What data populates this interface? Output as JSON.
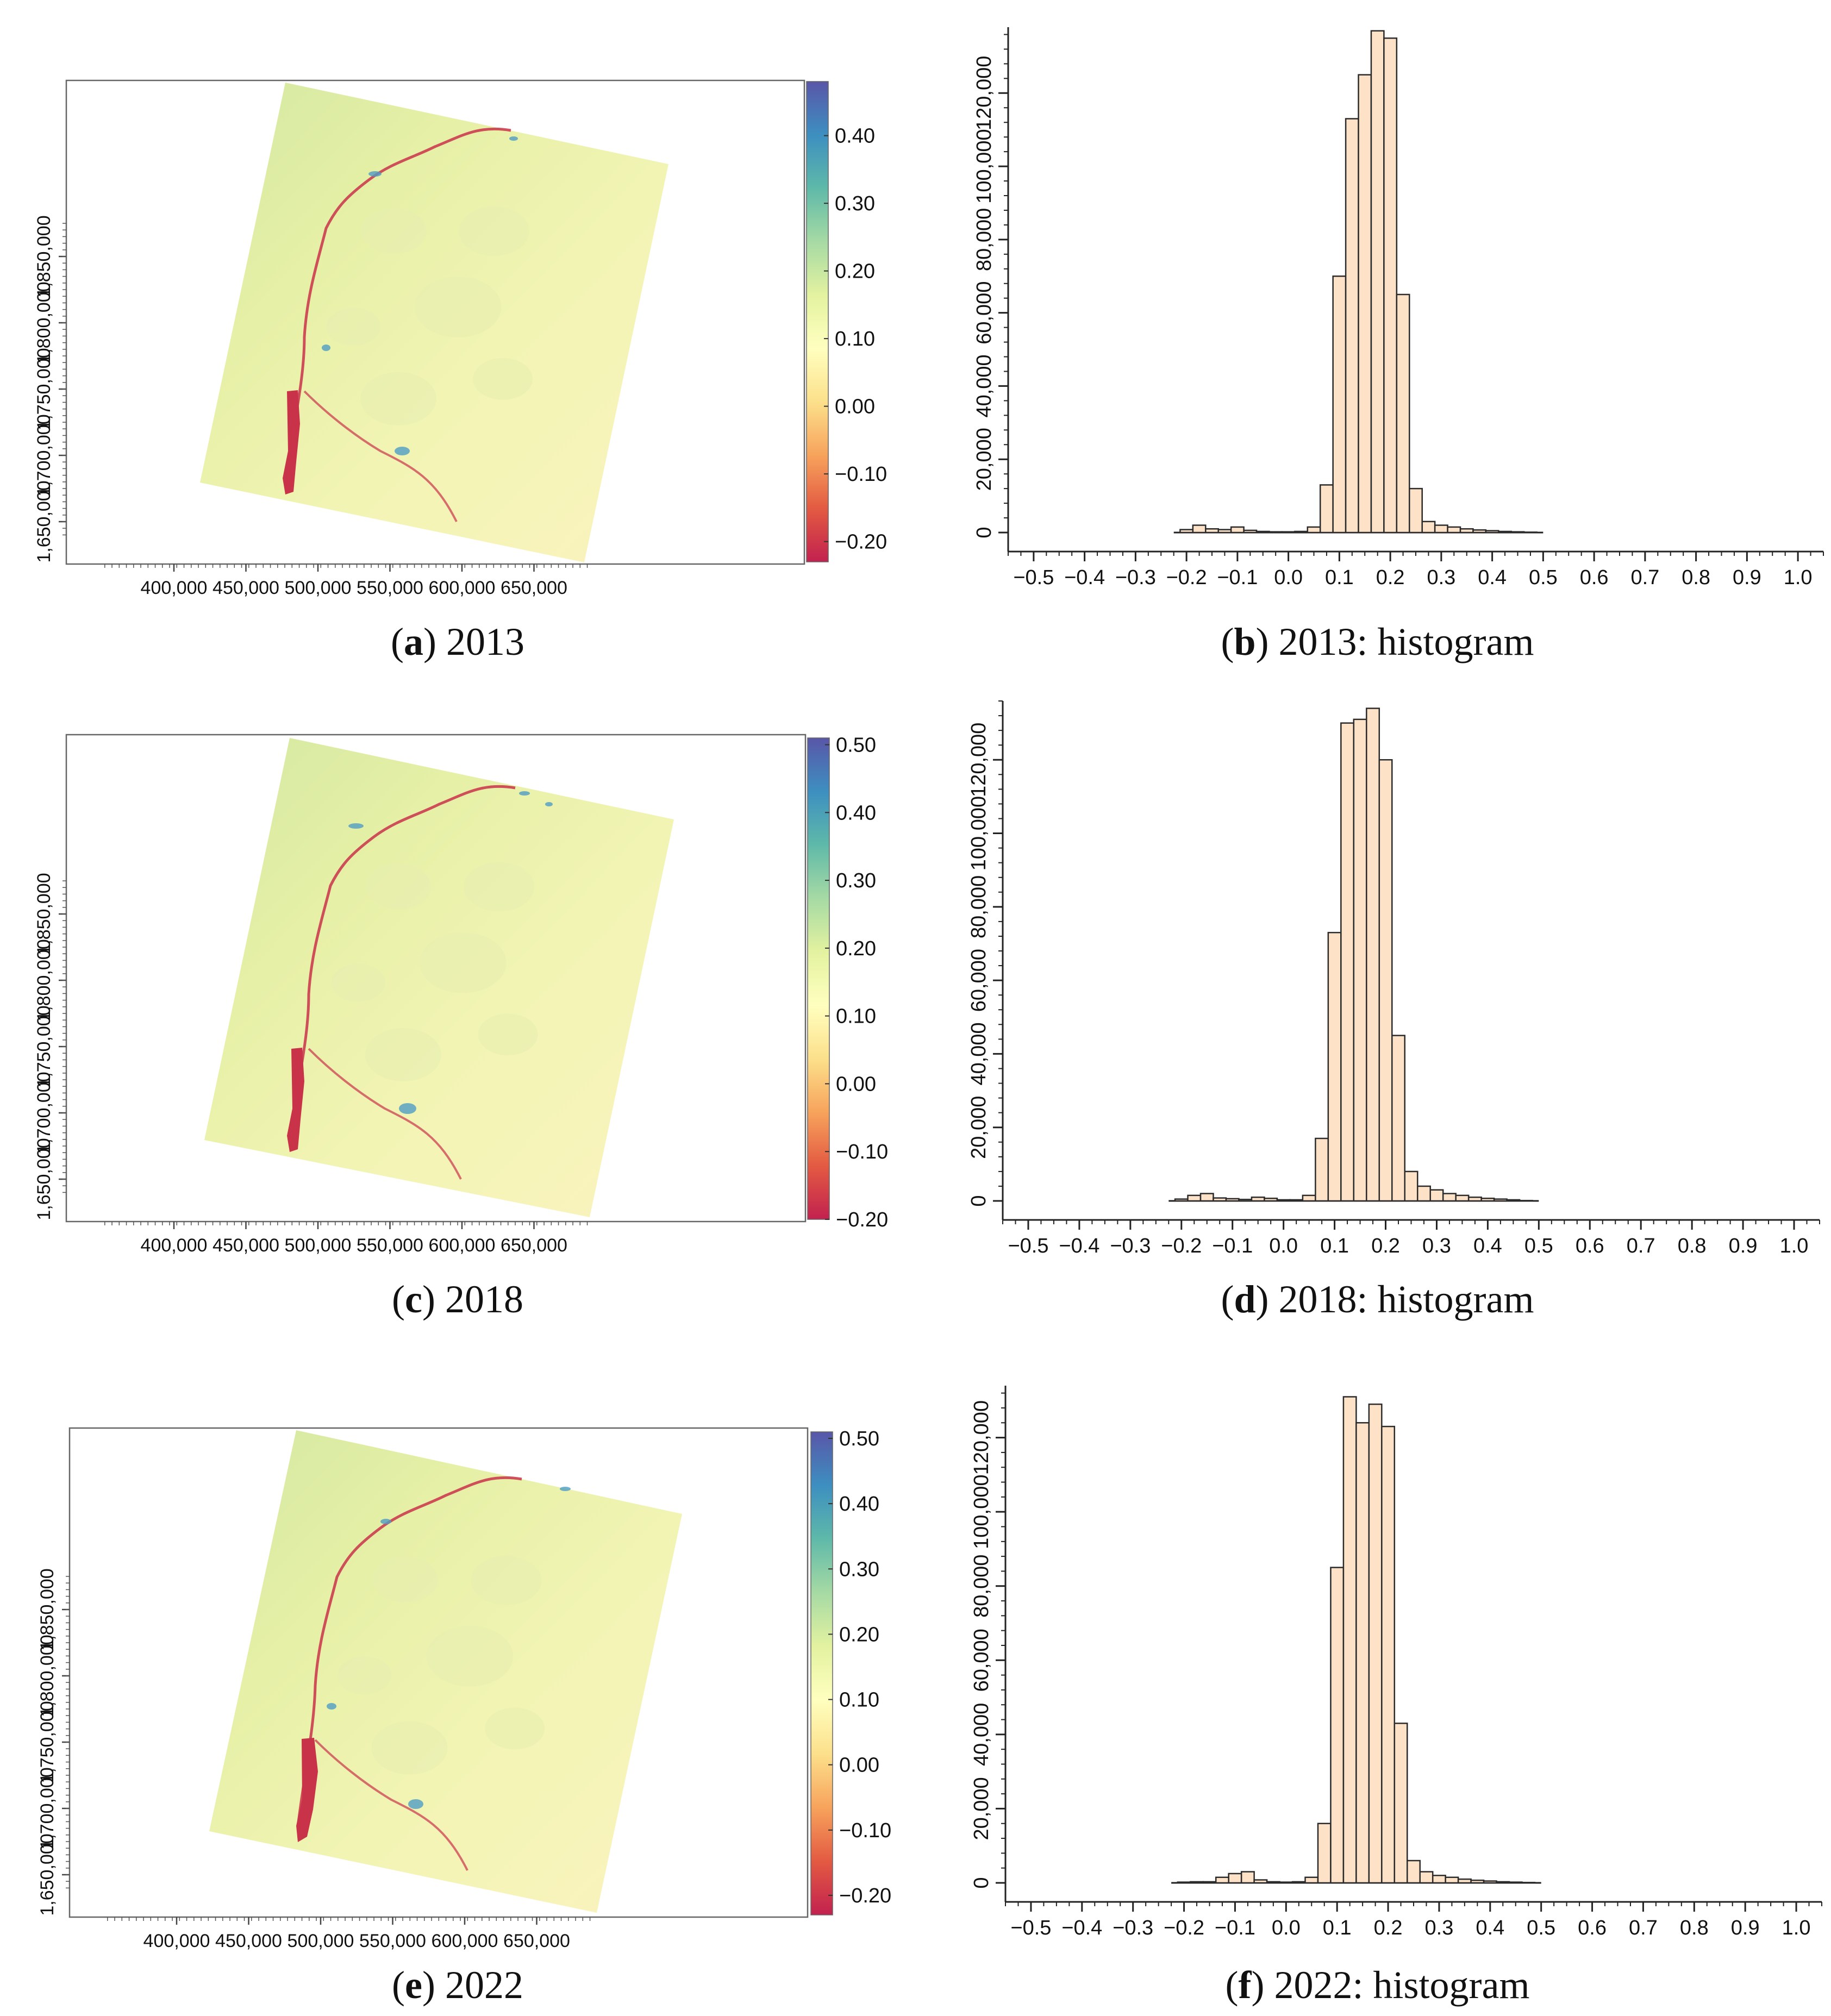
{
  "colors": {
    "bar_fill": "#fde2c8",
    "bar_stroke": "#2b2b2b",
    "river": "#c9334a",
    "colormap": [
      "#c2214f",
      "#e35a42",
      "#f7a35c",
      "#fce08b",
      "#ffffbf",
      "#e3f2a0",
      "#a6daa4",
      "#5fb9a9",
      "#3d8fc0",
      "#5956a8"
    ]
  },
  "captions": {
    "a": {
      "letter": "a",
      "text": " 2013"
    },
    "b": {
      "letter": "b",
      "text": " 2013: histogram"
    },
    "c": {
      "letter": "c",
      "text": " 2018"
    },
    "d": {
      "letter": "d",
      "text": " 2018: histogram"
    },
    "e": {
      "letter": "e",
      "text": " 2022"
    },
    "f": {
      "letter": "f",
      "text": " 2022: histogram"
    }
  },
  "chart_data": [
    {
      "id": "a",
      "type": "heatmap",
      "year": "2013",
      "x_ticks": [
        "400,000",
        "450,000",
        "500,000",
        "550,000",
        "600,000",
        "650,000"
      ],
      "x_tick_values": [
        400000,
        450000,
        500000,
        550000,
        600000,
        650000
      ],
      "y_ticks": [
        "1,650,000",
        "1,700,000",
        "1,750,000",
        "1,800,000",
        "1,850,000"
      ],
      "y_tick_values": [
        1650000,
        1700000,
        1750000,
        1800000,
        1850000
      ],
      "colorbar_ticks": [
        "0.40",
        "0.30",
        "0.20",
        "0.10",
        "0.00",
        "−0.10",
        "−0.20"
      ],
      "colorbar_values": [
        0.4,
        0.3,
        0.2,
        0.1,
        0.0,
        -0.1,
        -0.2
      ],
      "colorbar_range": [
        -0.23,
        0.48
      ]
    },
    {
      "id": "b",
      "type": "bar",
      "year": "2013",
      "x_ticks": [
        "−0.5",
        "−0.4",
        "−0.3",
        "−0.2",
        "−0.1",
        "0.0",
        "0.1",
        "0.2",
        "0.3",
        "0.4",
        "0.5",
        "0.6",
        "0.7",
        "0.8",
        "0.9",
        "1.0"
      ],
      "y_ticks": [
        "0",
        "20,000",
        "40,000",
        "60,000",
        "80,000",
        "100,000",
        "120,000"
      ],
      "xlim": [
        -0.55,
        1.05
      ],
      "ylim": [
        0,
        138000
      ],
      "bin_width": 0.025,
      "x": [
        -0.2,
        -0.175,
        -0.15,
        -0.125,
        -0.1,
        -0.075,
        -0.05,
        -0.025,
        0,
        0.025,
        0.05,
        0.075,
        0.1,
        0.125,
        0.15,
        0.175,
        0.2,
        0.225,
        0.25,
        0.275,
        0.3,
        0.325,
        0.35,
        0.375,
        0.4,
        0.425,
        0.45,
        0.475
      ],
      "values": [
        800,
        2000,
        1000,
        800,
        1500,
        600,
        300,
        200,
        200,
        300,
        1500,
        13000,
        70000,
        113000,
        125000,
        137000,
        135000,
        65000,
        12000,
        3000,
        2000,
        1500,
        1000,
        700,
        500,
        300,
        200,
        100
      ]
    },
    {
      "id": "c",
      "type": "heatmap",
      "year": "2018",
      "x_ticks": [
        "400,000",
        "450,000",
        "500,000",
        "550,000",
        "600,000",
        "650,000"
      ],
      "x_tick_values": [
        400000,
        450000,
        500000,
        550000,
        600000,
        650000
      ],
      "y_ticks": [
        "1,650,000",
        "1,700,000",
        "1,750,000",
        "1,800,000",
        "1,850,000"
      ],
      "y_tick_values": [
        1650000,
        1700000,
        1750000,
        1800000,
        1850000
      ],
      "colorbar_ticks": [
        "0.50",
        "0.40",
        "0.30",
        "0.20",
        "0.10",
        "0.00",
        "−0.10",
        "−0.20"
      ],
      "colorbar_values": [
        0.5,
        0.4,
        0.3,
        0.2,
        0.1,
        0.0,
        -0.1,
        -0.2
      ],
      "colorbar_range": [
        -0.2,
        0.51
      ]
    },
    {
      "id": "d",
      "type": "bar",
      "year": "2018",
      "x_ticks": [
        "−0.5",
        "−0.4",
        "−0.3",
        "−0.2",
        "−0.1",
        "0.0",
        "0.1",
        "0.2",
        "0.3",
        "0.4",
        "0.5",
        "0.6",
        "0.7",
        "0.8",
        "0.9",
        "1.0"
      ],
      "y_ticks": [
        "0",
        "20,000",
        "40,000",
        "60,000",
        "80,000",
        "100,000",
        "120,000"
      ],
      "xlim": [
        -0.55,
        1.05
      ],
      "ylim": [
        0,
        136000
      ],
      "bin_width": 0.025,
      "x": [
        -0.2,
        -0.175,
        -0.15,
        -0.125,
        -0.1,
        -0.075,
        -0.05,
        -0.025,
        0,
        0.025,
        0.05,
        0.075,
        0.1,
        0.125,
        0.15,
        0.175,
        0.2,
        0.225,
        0.25,
        0.275,
        0.3,
        0.325,
        0.35,
        0.375,
        0.4,
        0.425,
        0.45,
        0.475
      ],
      "values": [
        500,
        1500,
        2000,
        800,
        600,
        400,
        1000,
        700,
        300,
        300,
        1500,
        17000,
        73000,
        130000,
        131000,
        134000,
        120000,
        45000,
        8000,
        4000,
        3000,
        2000,
        1500,
        1000,
        700,
        500,
        300,
        100
      ]
    },
    {
      "id": "e",
      "type": "heatmap",
      "year": "2022",
      "x_ticks": [
        "400,000",
        "450,000",
        "500,000",
        "550,000",
        "600,000",
        "650,000"
      ],
      "x_tick_values": [
        400000,
        450000,
        500000,
        550000,
        600000,
        650000
      ],
      "y_ticks": [
        "1,650,000",
        "1,700,000",
        "1,750,000",
        "1,800,000",
        "1,850,000"
      ],
      "y_tick_values": [
        1650000,
        1700000,
        1750000,
        1800000,
        1850000
      ],
      "colorbar_ticks": [
        "0.50",
        "0.40",
        "0.30",
        "0.20",
        "0.10",
        "0.00",
        "−0.10",
        "−0.20"
      ],
      "colorbar_values": [
        0.5,
        0.4,
        0.3,
        0.2,
        0.1,
        0.0,
        -0.1,
        -0.2
      ],
      "colorbar_range": [
        -0.23,
        0.51
      ]
    },
    {
      "id": "f",
      "type": "bar",
      "year": "2022",
      "x_ticks": [
        "−0.5",
        "−0.4",
        "−0.3",
        "−0.2",
        "−0.1",
        "0.0",
        "0.1",
        "0.2",
        "0.3",
        "0.4",
        "0.5",
        "0.6",
        "0.7",
        "0.8",
        "0.9",
        "1.0"
      ],
      "y_ticks": [
        "0",
        "20,000",
        "40,000",
        "60,000",
        "80,000",
        "100,000",
        "120,000"
      ],
      "xlim": [
        -0.55,
        1.05
      ],
      "ylim": [
        0,
        134000
      ],
      "bin_width": 0.025,
      "x": [
        -0.2,
        -0.175,
        -0.15,
        -0.125,
        -0.1,
        -0.075,
        -0.05,
        -0.025,
        0,
        0.025,
        0.05,
        0.075,
        0.1,
        0.125,
        0.15,
        0.175,
        0.2,
        0.225,
        0.25,
        0.275,
        0.3,
        0.325,
        0.35,
        0.375,
        0.4,
        0.425,
        0.45,
        0.475
      ],
      "values": [
        200,
        300,
        300,
        1500,
        2500,
        3000,
        800,
        300,
        200,
        300,
        1500,
        16000,
        85000,
        131000,
        124000,
        129000,
        123000,
        43000,
        6000,
        3000,
        2000,
        1500,
        1000,
        700,
        500,
        300,
        200,
        100
      ]
    }
  ]
}
